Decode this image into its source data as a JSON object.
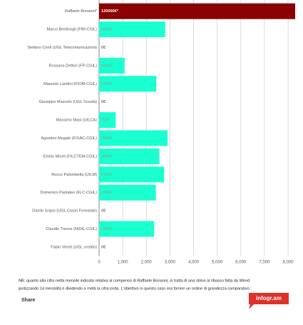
{
  "chart_data": {
    "type": "bar",
    "orientation": "horizontal",
    "categories": [
      "Raffaele Bonanni*",
      "Marco Bentivogli (FIM-CISL)",
      "Stefano Conti (UGL Telecomunicazioni)",
      "Rossana Dettori (FP-CGIL)",
      "Maurizio Landini (FIOM-CGIL)",
      "Giuseppe Mascolo (UGL Scuola)",
      "Massimo Masi (UILCA)",
      "Agostino Megale (FISAC-CGIL)",
      "Emilio Miceli (FILCTEM-CGIL)",
      "Rocco Palombella (UILM)",
      "Domenico Pantaleo (FLC-CGIL)",
      "Danilo Scipio (UGL Corpo Forestale)",
      "Claudio Treves (NIDIL-CGIL)",
      "Fabio Vereti (UGL credito)"
    ],
    "values": [
      120000,
      2800,
      0,
      1080,
      2420,
      0,
      700,
      2900,
      2550,
      2750,
      2400,
      0,
      2330,
      0
    ],
    "value_labels": [
      "120000€*",
      "2800€",
      "0€",
      "1080€",
      "2420€",
      "0€",
      "700€",
      "2900€",
      "2550€",
      "2750€",
      "2400€",
      "0€",
      "2330€",
      "0€"
    ],
    "colors": [
      "#8b0000",
      "#1affd0",
      "#1affd0",
      "#1affd0",
      "#1affd0",
      "#1affd0",
      "#1affd0",
      "#1affd0",
      "#1affd0",
      "#1affd0",
      "#1affd0",
      "#1affd0",
      "#1affd0",
      "#1affd0"
    ],
    "xlim": [
      0,
      8300
    ],
    "xticks": [
      0,
      {
        "value": 1000,
        "label": "1,000"
      },
      {
        "value": 2000,
        "label": "2,000"
      },
      {
        "value": 3000,
        "label": "3,000"
      },
      {
        "value": 4000,
        "label": "4,000"
      },
      {
        "value": 5000,
        "label": "5,000"
      },
      {
        "value": 6000,
        "label": "6,000"
      },
      {
        "value": 7000,
        "label": "7,000"
      },
      {
        "value": 8000,
        "label": "8,000"
      }
    ],
    "grid": true
  },
  "footer": {
    "note_line1": "NB: quanto alla cifra netta mensile indicata relativa al compenso di Raffaele Bonanni, si tratta di una stima al ribasso fatta da Wired",
    "note_line2": "ipotizzando 14 mensilità e dividendo a metà la cifra lorda. L'obiettivo in questo caso era fornire un ordine di grandezza comparativo.",
    "share": "Share",
    "brand": "infogr.am"
  }
}
